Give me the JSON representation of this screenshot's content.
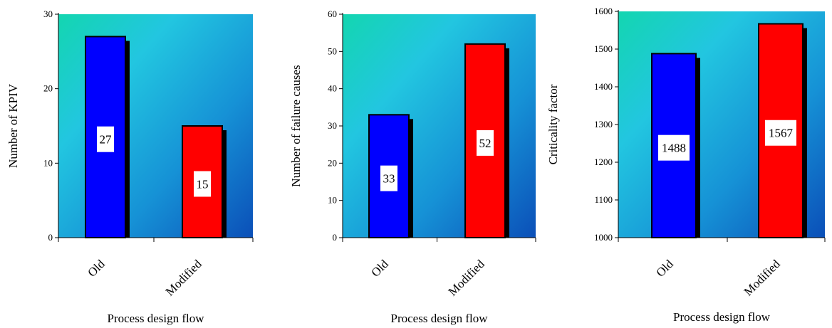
{
  "chart_data": [
    {
      "type": "bar",
      "categories": [
        "Old",
        "Modified"
      ],
      "values": [
        27,
        15
      ],
      "value_labels": [
        "27",
        "15"
      ],
      "bar_colors": [
        "#0000ff",
        "#ff0000"
      ],
      "xlabel": "Process design flow",
      "ylabel": "Number of KPIV",
      "ylim": [
        0,
        30
      ],
      "yticks": [
        0,
        10,
        20,
        30
      ],
      "ytick_labels": [
        "0",
        "10",
        "20",
        "30"
      ],
      "grid": false,
      "legend": "none",
      "background": "teal-to-blue gradient"
    },
    {
      "type": "bar",
      "categories": [
        "Old",
        "Modified"
      ],
      "values": [
        33,
        52
      ],
      "value_labels": [
        "33",
        "52"
      ],
      "bar_colors": [
        "#0000ff",
        "#ff0000"
      ],
      "xlabel": "Process design flow",
      "ylabel": "Number of failure causes",
      "ylim": [
        0,
        60
      ],
      "yticks": [
        0,
        10,
        20,
        30,
        40,
        50,
        60
      ],
      "ytick_labels": [
        "0",
        "10",
        "20",
        "30",
        "40",
        "50",
        "60"
      ],
      "grid": false,
      "legend": "none",
      "background": "teal-to-blue gradient"
    },
    {
      "type": "bar",
      "categories": [
        "Old",
        "Modified"
      ],
      "values": [
        1488,
        1567
      ],
      "value_labels": [
        "1488",
        "1567"
      ],
      "bar_colors": [
        "#0000ff",
        "#ff0000"
      ],
      "xlabel": "Process design flow",
      "ylabel": "Criticality factor",
      "ylim": [
        1000,
        1600
      ],
      "yticks": [
        1000,
        1100,
        1200,
        1300,
        1400,
        1500,
        1600
      ],
      "ytick_labels": [
        "1000",
        "1100",
        "1200",
        "1300",
        "1400",
        "1500",
        "1600"
      ],
      "grid": false,
      "legend": "none",
      "background": "teal-to-blue gradient"
    }
  ]
}
